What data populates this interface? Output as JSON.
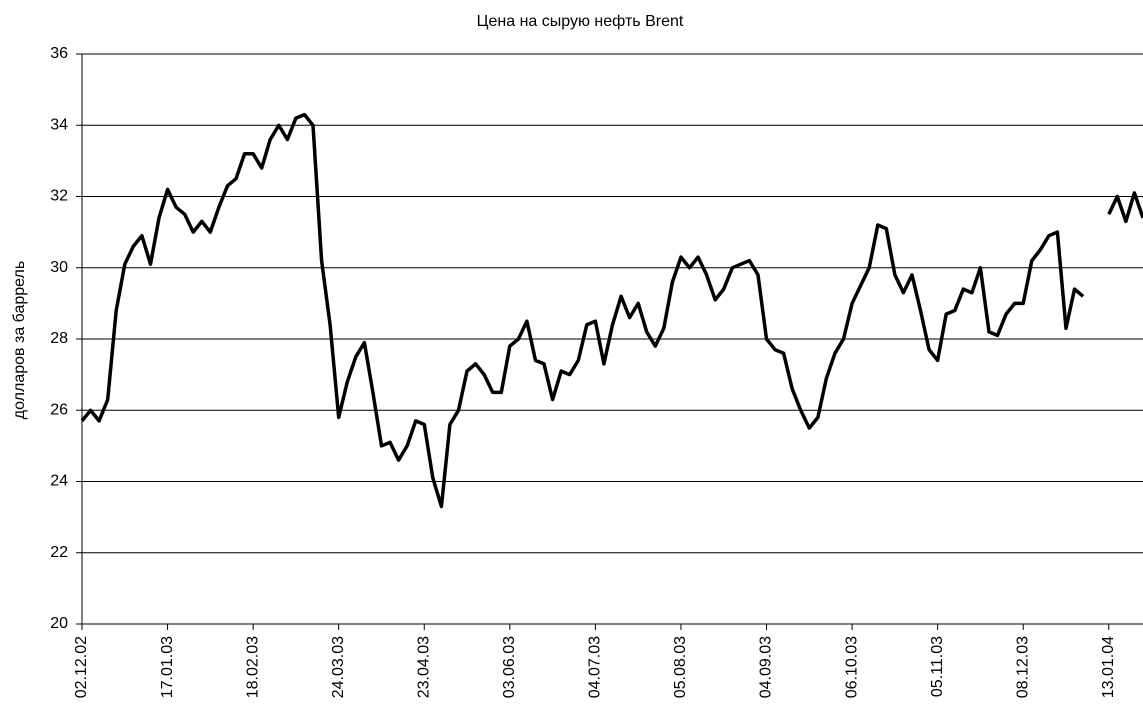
{
  "chart_data": {
    "type": "line",
    "title": "Цена на сырую нефть Brent",
    "y_label": "долларов за баррель",
    "categories": [
      "02.12.02",
      null,
      null,
      null,
      null,
      null,
      null,
      null,
      null,
      null,
      "17.01.03",
      null,
      null,
      null,
      null,
      null,
      null,
      null,
      null,
      null,
      "18.02.03",
      null,
      null,
      null,
      null,
      null,
      null,
      null,
      null,
      null,
      "24.03.03",
      null,
      null,
      null,
      null,
      null,
      null,
      null,
      null,
      null,
      "23.04.03",
      null,
      null,
      null,
      null,
      null,
      null,
      null,
      null,
      null,
      "03.06.03",
      null,
      null,
      null,
      null,
      null,
      null,
      null,
      null,
      null,
      "04.07.03",
      null,
      null,
      null,
      null,
      null,
      null,
      null,
      null,
      null,
      "05.08.03",
      null,
      null,
      null,
      null,
      null,
      null,
      null,
      null,
      null,
      "04.09.03",
      null,
      null,
      null,
      null,
      null,
      null,
      null,
      null,
      null,
      "06.10.03",
      null,
      null,
      null,
      null,
      null,
      null,
      null,
      null,
      null,
      "05.11.03",
      null,
      null,
      null,
      null,
      null,
      null,
      null,
      null,
      null,
      "08.12.03",
      null,
      null,
      null,
      null,
      null,
      null,
      null,
      null,
      null,
      "13.01.04",
      null,
      null,
      null,
      null
    ],
    "series": [
      {
        "name": "Brent",
        "color": "#000000",
        "values": [
          25.7,
          26.0,
          25.7,
          26.3,
          28.8,
          30.1,
          30.6,
          30.9,
          30.1,
          31.4,
          32.2,
          31.7,
          31.5,
          31.0,
          31.3,
          31.0,
          31.7,
          32.3,
          32.5,
          33.2,
          33.2,
          32.8,
          33.6,
          34.0,
          33.6,
          34.2,
          34.3,
          34.0,
          30.2,
          28.4,
          25.8,
          26.8,
          27.5,
          27.9,
          26.5,
          25.0,
          25.1,
          24.6,
          25.0,
          25.7,
          25.6,
          24.1,
          23.3,
          25.6,
          26.0,
          27.1,
          27.3,
          27.0,
          26.5,
          26.5,
          27.8,
          28.0,
          28.5,
          27.4,
          27.3,
          26.3,
          27.1,
          27.0,
          27.4,
          28.4,
          28.5,
          27.3,
          28.4,
          29.2,
          28.6,
          29.0,
          28.2,
          27.8,
          28.3,
          29.6,
          30.3,
          30.0,
          30.3,
          29.8,
          29.1,
          29.4,
          30.0,
          30.1,
          30.2,
          29.8,
          28.0,
          27.7,
          27.6,
          26.6,
          26.0,
          25.5,
          25.8,
          26.9,
          27.6,
          28.0,
          29.0,
          29.5,
          30.0,
          31.2,
          31.1,
          29.8,
          29.3,
          29.8,
          28.8,
          27.7,
          27.4,
          28.7,
          28.8,
          29.4,
          29.3,
          30.0,
          28.2,
          28.1,
          28.7,
          29.0,
          29.0,
          30.2,
          30.5,
          30.9,
          31.0,
          28.3,
          29.4,
          29.2,
          null,
          null,
          31.5,
          32.0,
          31.3,
          32.1,
          31.4
        ]
      }
    ],
    "ylim": [
      20,
      36
    ],
    "yticks": [
      20,
      22,
      24,
      26,
      28,
      30,
      32,
      34,
      36
    ],
    "grid": true
  }
}
